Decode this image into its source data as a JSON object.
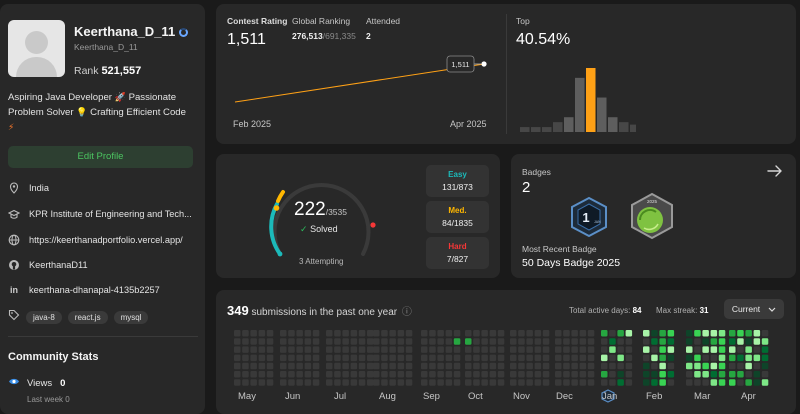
{
  "profile": {
    "name": "Keerthana_D_11",
    "handle": "Keerthana_D_11",
    "rank_label": "Rank",
    "rank_value": "521,557",
    "bio_1": "Aspiring Java Developer",
    "bio_2": "Passionate",
    "bio_3": "Problem Solver",
    "bio_4": "Crafting Efficient Code",
    "edit_label": "Edit Profile",
    "location": "India",
    "school": "KPR Institute of Engineering and Tech...",
    "website": "https://keerthanadportfolio.vercel.app/",
    "github": "KeerthanaD11",
    "linkedin": "keerthana-dhanapal-4135b2257",
    "tags": [
      "java-8",
      "react.js",
      "mysql"
    ]
  },
  "community": {
    "title": "Community Stats",
    "views_label": "Views",
    "views_value": "0",
    "last_week": "Last week 0"
  },
  "contest": {
    "rating_label": "Contest Rating",
    "rating_value": "1,511",
    "global_label": "Global Ranking",
    "global_value": "276,513",
    "global_total": "/691,335",
    "attended_label": "Attended",
    "attended_value": "2",
    "tooltip": "1,511",
    "x_start": "Feb 2025",
    "x_end": "Apr 2025",
    "top_label": "Top",
    "top_value": "40.54%",
    "histogram": [
      2,
      2,
      2,
      4,
      6,
      22,
      26,
      14,
      6,
      4,
      3,
      2,
      2,
      2
    ],
    "histogram_highlight_index": 6,
    "colors": {
      "line": "#ffa116",
      "bar": "#5a5a5a",
      "highlight": "#ffa116"
    }
  },
  "solved": {
    "count": "222",
    "total": "/3535",
    "solved_label": "Solved",
    "attempting": "3 Attempting",
    "easy_label": "Easy",
    "easy_value": "131/873",
    "med_label": "Med.",
    "med_value": "84/1835",
    "hard_label": "Hard",
    "hard_value": "7/827",
    "colors": {
      "easy": "#1cbaba",
      "med": "#ffb700",
      "hard": "#f63737"
    }
  },
  "badges": {
    "label": "Badges",
    "count": "2",
    "recent_label": "Most Recent Badge",
    "recent_name": "50 Days Badge 2025",
    "badge1_text": "1",
    "badge1_sub": "JAN",
    "badge2_text": "2025"
  },
  "submissions": {
    "count": "349",
    "text": "submissions in the past one year",
    "active_label": "Total active days:",
    "active_value": "84",
    "streak_label": "Max streak:",
    "streak_value": "31",
    "current_label": "Current",
    "months": [
      "May",
      "Jun",
      "Jul",
      "Aug",
      "Sep",
      "Oct",
      "Nov",
      "Dec",
      "Jan",
      "Feb",
      "Mar",
      "Apr"
    ]
  }
}
